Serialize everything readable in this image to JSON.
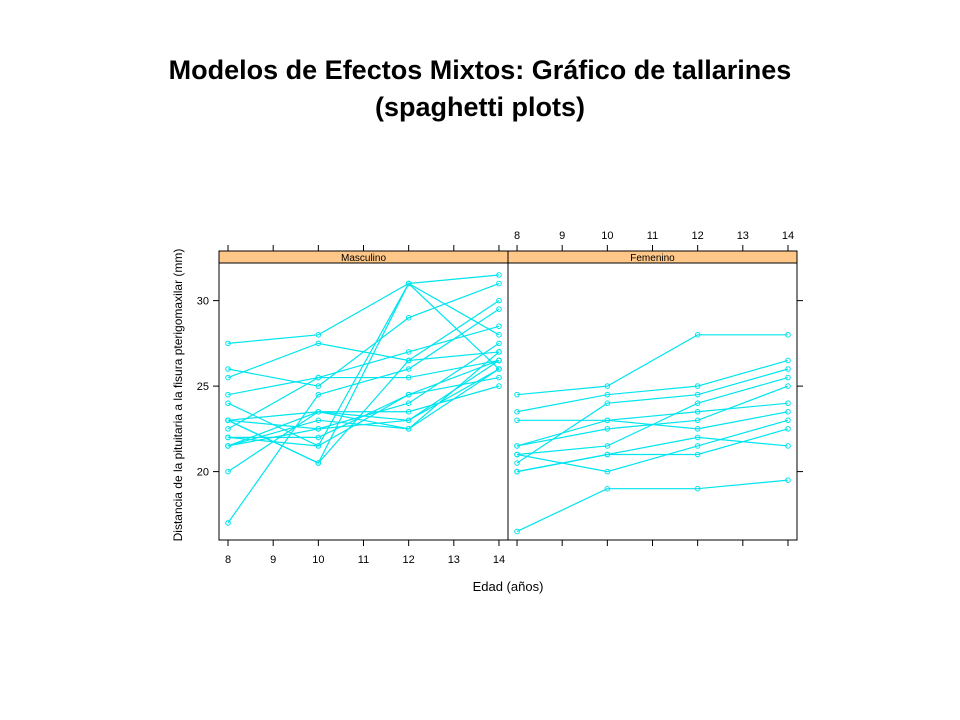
{
  "slide": {
    "title_line1": "Modelos de Efectos Mixtos: Gráfico de tallarines",
    "title_line2": "(spaghetti plots)"
  },
  "chart_data": {
    "type": "line",
    "xlabel": "Edad (años)",
    "ylabel": "Distancia de la pituitaria a la fisura pterigomaxilar (mm)",
    "x": [
      8,
      10,
      12,
      14
    ],
    "x_ticks": [
      8,
      9,
      10,
      11,
      12,
      13,
      14
    ],
    "xlim": [
      7.8,
      14.2
    ],
    "y_ticks": [
      20,
      25,
      30
    ],
    "ylim": [
      16.0,
      32.2
    ],
    "line_color": "#00e5ee",
    "strip_color": "#ffc888",
    "panels": [
      {
        "name": "Masculino",
        "series": [
          {
            "values": [
              27.5,
              28.0,
              31.0,
              31.5
            ]
          },
          {
            "values": [
              26.0,
              25.0,
              29.0,
              31.0
            ]
          },
          {
            "values": [
              25.5,
              27.5,
              26.5,
              27.0
            ]
          },
          {
            "values": [
              24.5,
              25.5,
              27.0,
              28.5
            ]
          },
          {
            "values": [
              24.0,
              21.5,
              24.5,
              25.5
            ]
          },
          {
            "values": [
              23.0,
              22.5,
              24.0,
              27.5
            ]
          },
          {
            "values": [
              23.0,
              23.5,
              23.0,
              26.0
            ]
          },
          {
            "values": [
              22.5,
              25.5,
              25.5,
              26.5
            ]
          },
          {
            "values": [
              22.0,
              22.0,
              24.5,
              26.5
            ]
          },
          {
            "values": [
              21.5,
              23.0,
              22.5,
              27.0
            ]
          },
          {
            "values": [
              21.5,
              23.5,
              23.5,
              25.0
            ]
          },
          {
            "values": [
              21.5,
              22.5,
              23.0,
              26.5
            ]
          },
          {
            "values": [
              20.0,
              23.5,
              22.5,
              26.0
            ]
          },
          {
            "values": [
              17.0,
              24.5,
              26.0,
              29.5
            ]
          },
          {
            "values": [
              22.0,
              21.5,
              31.0,
              26.0
            ]
          },
          {
            "values": [
              23.0,
              20.5,
              31.0,
              28.0
            ]
          },
          {
            "values": [
              23.0,
              20.5,
              26.5,
              30.0
            ]
          }
        ]
      },
      {
        "name": "Femenino",
        "series": [
          {
            "values": [
              21.0,
              20.0,
              21.5,
              23.0
            ]
          },
          {
            "values": [
              21.0,
              21.5,
              24.0,
              25.5
            ]
          },
          {
            "values": [
              20.5,
              24.0,
              24.5,
              26.0
            ]
          },
          {
            "values": [
              23.5,
              24.5,
              25.0,
              26.5
            ]
          },
          {
            "values": [
              21.5,
              23.0,
              22.5,
              23.5
            ]
          },
          {
            "values": [
              20.0,
              21.0,
              21.0,
              22.5
            ]
          },
          {
            "values": [
              21.5,
              22.5,
              23.0,
              25.0
            ]
          },
          {
            "values": [
              23.0,
              23.0,
              23.5,
              24.0
            ]
          },
          {
            "values": [
              20.0,
              21.0,
              22.0,
              21.5
            ]
          },
          {
            "values": [
              16.5,
              19.0,
              19.0,
              19.5
            ]
          },
          {
            "values": [
              24.5,
              25.0,
              28.0,
              28.0
            ]
          }
        ]
      }
    ]
  }
}
